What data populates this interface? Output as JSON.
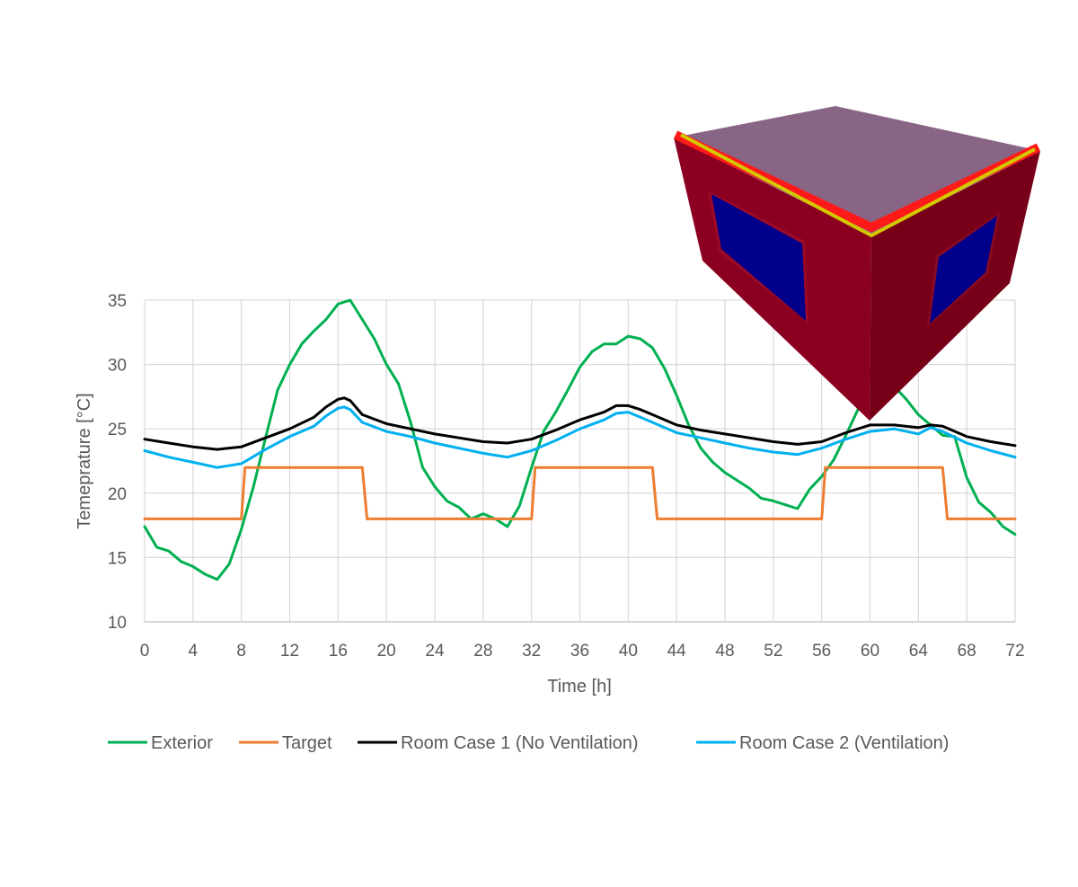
{
  "chart_data": {
    "type": "line",
    "title": "",
    "xlabel": "Time [h]",
    "ylabel": "Temeprature  [°C]",
    "xlim": [
      0,
      72
    ],
    "ylim": [
      10,
      35
    ],
    "xticks": [
      0,
      4,
      8,
      12,
      16,
      20,
      24,
      28,
      32,
      36,
      40,
      44,
      48,
      52,
      56,
      60,
      64,
      68,
      72
    ],
    "yticks": [
      10,
      15,
      20,
      25,
      30,
      35
    ],
    "grid": true,
    "legend_position": "bottom",
    "series": [
      {
        "name": "Exterior",
        "color": "#00b050",
        "points": [
          [
            0,
            17.4
          ],
          [
            1,
            15.8
          ],
          [
            2,
            15.5
          ],
          [
            3,
            14.7
          ],
          [
            4,
            14.3
          ],
          [
            5,
            13.7
          ],
          [
            6,
            13.3
          ],
          [
            7,
            14.5
          ],
          [
            8,
            17.2
          ],
          [
            9,
            20.5
          ],
          [
            10,
            24.3
          ],
          [
            11,
            28.0
          ],
          [
            12,
            30.0
          ],
          [
            13,
            31.6
          ],
          [
            14,
            32.6
          ],
          [
            15,
            33.5
          ],
          [
            16,
            34.7
          ],
          [
            17,
            35.0
          ],
          [
            18,
            33.5
          ],
          [
            19,
            32.0
          ],
          [
            20,
            30.0
          ],
          [
            21,
            28.5
          ],
          [
            22,
            25.5
          ],
          [
            23,
            22.0
          ],
          [
            24,
            20.5
          ],
          [
            25,
            19.4
          ],
          [
            26,
            18.9
          ],
          [
            27,
            18.0
          ],
          [
            28,
            18.4
          ],
          [
            29,
            18.0
          ],
          [
            30,
            17.4
          ],
          [
            31,
            19.0
          ],
          [
            32,
            22.0
          ],
          [
            33,
            24.8
          ],
          [
            34,
            26.3
          ],
          [
            35,
            28.0
          ],
          [
            36,
            29.8
          ],
          [
            37,
            31.0
          ],
          [
            38,
            31.6
          ],
          [
            39,
            31.6
          ],
          [
            40,
            32.2
          ],
          [
            41,
            32.0
          ],
          [
            42,
            31.3
          ],
          [
            43,
            29.7
          ],
          [
            44,
            27.6
          ],
          [
            45,
            25.3
          ],
          [
            46,
            23.5
          ],
          [
            47,
            22.4
          ],
          [
            48,
            21.6
          ],
          [
            49,
            21.0
          ],
          [
            50,
            20.4
          ],
          [
            51,
            19.6
          ],
          [
            52,
            19.4
          ],
          [
            53,
            19.1
          ],
          [
            54,
            18.8
          ],
          [
            55,
            20.3
          ],
          [
            56,
            21.3
          ],
          [
            57,
            22.6
          ],
          [
            58,
            24.5
          ],
          [
            59,
            26.5
          ],
          [
            60,
            27.8
          ],
          [
            61,
            28.4
          ],
          [
            62,
            28.3
          ],
          [
            63,
            27.3
          ],
          [
            64,
            26.1
          ],
          [
            65,
            25.3
          ],
          [
            66,
            24.5
          ],
          [
            67,
            24.4
          ],
          [
            68,
            21.2
          ],
          [
            69,
            19.3
          ],
          [
            70,
            18.5
          ],
          [
            71,
            17.4
          ],
          [
            72,
            16.8
          ]
        ]
      },
      {
        "name": "Target",
        "color": "#ed7d31",
        "points": [
          [
            0,
            18
          ],
          [
            8,
            18
          ],
          [
            8.3,
            22
          ],
          [
            18,
            22
          ],
          [
            18.4,
            18
          ],
          [
            32,
            18
          ],
          [
            32.3,
            22
          ],
          [
            42,
            22
          ],
          [
            42.4,
            18
          ],
          [
            56,
            18
          ],
          [
            56.3,
            22
          ],
          [
            66,
            22
          ],
          [
            66.4,
            18
          ],
          [
            72,
            18
          ]
        ]
      },
      {
        "name": "Room Case 1 (No Ventilation)",
        "color": "#000000",
        "points": [
          [
            0,
            24.2
          ],
          [
            2,
            23.9
          ],
          [
            4,
            23.6
          ],
          [
            6,
            23.4
          ],
          [
            8,
            23.6
          ],
          [
            10,
            24.3
          ],
          [
            12,
            25.0
          ],
          [
            14,
            25.9
          ],
          [
            15,
            26.7
          ],
          [
            16,
            27.3
          ],
          [
            16.5,
            27.4
          ],
          [
            17,
            27.2
          ],
          [
            18,
            26.1
          ],
          [
            20,
            25.4
          ],
          [
            22,
            25.0
          ],
          [
            24,
            24.6
          ],
          [
            26,
            24.3
          ],
          [
            28,
            24.0
          ],
          [
            30,
            23.9
          ],
          [
            32,
            24.2
          ],
          [
            34,
            24.9
          ],
          [
            36,
            25.7
          ],
          [
            38,
            26.3
          ],
          [
            39,
            26.8
          ],
          [
            40,
            26.8
          ],
          [
            41,
            26.5
          ],
          [
            42,
            26.1
          ],
          [
            44,
            25.3
          ],
          [
            46,
            24.9
          ],
          [
            48,
            24.6
          ],
          [
            50,
            24.3
          ],
          [
            52,
            24.0
          ],
          [
            54,
            23.8
          ],
          [
            56,
            24.0
          ],
          [
            58,
            24.7
          ],
          [
            60,
            25.3
          ],
          [
            62,
            25.3
          ],
          [
            64,
            25.1
          ],
          [
            65,
            25.3
          ],
          [
            66,
            25.2
          ],
          [
            68,
            24.4
          ],
          [
            70,
            24.0
          ],
          [
            72,
            23.7
          ]
        ]
      },
      {
        "name": "Room Case 2 (Ventilation)",
        "color": "#00b0f0",
        "points": [
          [
            0,
            23.3
          ],
          [
            2,
            22.8
          ],
          [
            4,
            22.4
          ],
          [
            6,
            22.0
          ],
          [
            8,
            22.3
          ],
          [
            10,
            23.4
          ],
          [
            12,
            24.4
          ],
          [
            14,
            25.2
          ],
          [
            15,
            26.0
          ],
          [
            16,
            26.6
          ],
          [
            16.5,
            26.7
          ],
          [
            17,
            26.5
          ],
          [
            18,
            25.5
          ],
          [
            20,
            24.8
          ],
          [
            22,
            24.4
          ],
          [
            24,
            23.9
          ],
          [
            26,
            23.5
          ],
          [
            28,
            23.1
          ],
          [
            30,
            22.8
          ],
          [
            32,
            23.3
          ],
          [
            34,
            24.1
          ],
          [
            36,
            25.0
          ],
          [
            38,
            25.7
          ],
          [
            39,
            26.2
          ],
          [
            40,
            26.3
          ],
          [
            41,
            25.9
          ],
          [
            42,
            25.5
          ],
          [
            44,
            24.7
          ],
          [
            46,
            24.3
          ],
          [
            48,
            23.9
          ],
          [
            50,
            23.5
          ],
          [
            52,
            23.2
          ],
          [
            54,
            23.0
          ],
          [
            56,
            23.5
          ],
          [
            58,
            24.2
          ],
          [
            60,
            24.8
          ],
          [
            62,
            25.0
          ],
          [
            64,
            24.6
          ],
          [
            65,
            25.1
          ],
          [
            66,
            24.8
          ],
          [
            68,
            23.9
          ],
          [
            70,
            23.3
          ],
          [
            72,
            22.8
          ]
        ]
      }
    ]
  }
}
